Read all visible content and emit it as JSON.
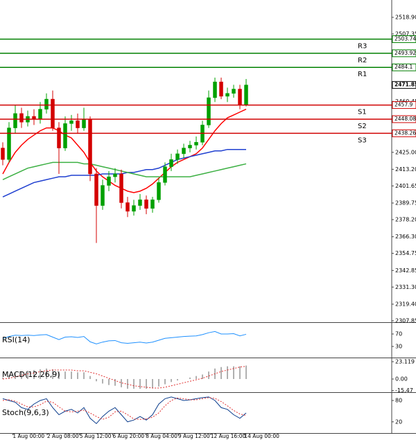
{
  "chart_data": [
    {
      "type": "candlestick",
      "up_color": "#00a000",
      "down_color": "#d40000",
      "open": [
        2428,
        2420,
        2442,
        2452,
        2446,
        2450,
        2448,
        2455,
        2462,
        2442,
        2428,
        2445,
        2447,
        2442,
        2448,
        2410,
        2388,
        2402,
        2408,
        2410,
        2390,
        2384,
        2388,
        2392,
        2386,
        2392,
        2404,
        2415,
        2420,
        2424,
        2428,
        2430,
        2432,
        2444,
        2463,
        2474,
        2464,
        2466,
        2469,
        2458
      ],
      "high": [
        2432,
        2446,
        2458,
        2456,
        2454,
        2455,
        2460,
        2466,
        2468,
        2446,
        2450,
        2451,
        2452,
        2456,
        2450,
        2414,
        2406,
        2412,
        2414,
        2413,
        2394,
        2392,
        2396,
        2395,
        2394,
        2407,
        2418,
        2424,
        2427,
        2431,
        2433,
        2436,
        2447,
        2468,
        2477,
        2477,
        2470,
        2472,
        2472,
        2476
      ],
      "low": [
        2416,
        2418,
        2438,
        2442,
        2443,
        2444,
        2445,
        2452,
        2440,
        2410,
        2426,
        2440,
        2438,
        2440,
        2405,
        2362,
        2385,
        2398,
        2404,
        2386,
        2380,
        2381,
        2385,
        2382,
        2383,
        2390,
        2402,
        2412,
        2417,
        2421,
        2425,
        2427,
        2430,
        2442,
        2460,
        2462,
        2460,
        2463,
        2455,
        2457
      ],
      "close": [
        2420,
        2442,
        2452,
        2446,
        2450,
        2448,
        2455,
        2462,
        2442,
        2428,
        2445,
        2447,
        2442,
        2448,
        2410,
        2388,
        2402,
        2408,
        2410,
        2390,
        2384,
        2388,
        2392,
        2386,
        2392,
        2404,
        2415,
        2420,
        2424,
        2428,
        2430,
        2432,
        2444,
        2463,
        2474,
        2464,
        2466,
        2469,
        2458,
        2471.85
      ],
      "overlays": [
        {
          "color": "#ff0000",
          "values": [
            2410,
            2418,
            2425,
            2430,
            2434,
            2437,
            2440,
            2442,
            2442,
            2440,
            2437,
            2435,
            2430,
            2425,
            2418,
            2412,
            2408,
            2405,
            2402,
            2400,
            2398,
            2397,
            2398,
            2400,
            2403,
            2407,
            2411,
            2415,
            2418,
            2420,
            2422,
            2424,
            2428,
            2434,
            2440,
            2445,
            2449,
            2451,
            2453,
            2455
          ]
        },
        {
          "color": "#1f3fd0",
          "values": [
            2394,
            2396,
            2398,
            2400,
            2402,
            2404,
            2405,
            2406,
            2407,
            2408,
            2408,
            2409,
            2409,
            2409,
            2409,
            2409,
            2410,
            2410,
            2410,
            2410,
            2411,
            2411,
            2412,
            2413,
            2413,
            2414,
            2416,
            2418,
            2420,
            2421,
            2422,
            2423,
            2424,
            2425,
            2426,
            2426,
            2427,
            2427,
            2427,
            2427
          ]
        },
        {
          "color": "#3cb043",
          "values": [
            2406,
            2408,
            2410,
            2412,
            2414,
            2415,
            2416,
            2417,
            2418,
            2418,
            2418,
            2418,
            2418,
            2417,
            2417,
            2416,
            2415,
            2414,
            2413,
            2412,
            2411,
            2410,
            2409,
            2408,
            2408,
            2408,
            2408,
            2408,
            2408,
            2408,
            2408,
            2409,
            2410,
            2411,
            2412,
            2413,
            2414,
            2415,
            2416,
            2417
          ]
        }
      ],
      "levels": [
        {
          "label": "R3",
          "value": 2503.74,
          "color": "#008000"
        },
        {
          "label": "R2",
          "value": 2493.92,
          "color": "#008000"
        },
        {
          "label": "R1",
          "value": 2484.1,
          "color": "#008000"
        },
        {
          "label": "S1",
          "value": 2457.9,
          "color": "#d00000"
        },
        {
          "label": "S2",
          "value": 2448.08,
          "color": "#d00000"
        },
        {
          "label": "S3",
          "value": 2438.26,
          "color": "#d00000"
        }
      ],
      "last": 2471.85,
      "ylim": [
        2306.85,
        2530.95
      ],
      "yticks": [
        {
          "value": 2518.9,
          "label": "2518.90"
        },
        2507.35,
        2460.45,
        {
          "value": 2425,
          "label": "2425.00"
        },
        {
          "value": 2413.2,
          "label": "2413.20"
        },
        2401.65,
        2389.75,
        {
          "value": 2378.2,
          "label": "2378.20"
        },
        {
          "value": 2366.3,
          "label": "2366.30"
        },
        2354.75,
        2342.85,
        {
          "value": 2331.3,
          "label": "2331.30"
        },
        {
          "value": 2319.4,
          "label": "2319.40"
        },
        2307.85
      ],
      "xticks": [
        {
          "value": 1.6,
          "label": "1 Aug 00:00"
        },
        {
          "value": 7.1,
          "label": "2 Aug 08:00"
        },
        {
          "value": 12.3,
          "label": "5 Aug 12:00"
        },
        {
          "value": 17.6,
          "label": "6 Aug 20:00"
        },
        {
          "value": 22.9,
          "label": "8 Aug 04:00"
        },
        {
          "value": 28.1,
          "label": "9 Aug 12:00"
        },
        {
          "value": 33.3,
          "label": "12 Aug 16:00"
        },
        {
          "value": 38.7,
          "label": "14 Aug 00:00"
        }
      ]
    },
    {
      "type": "line",
      "title": "RSI(14)",
      "series": [
        {
          "color": "#1e90ff",
          "style": "solid",
          "values": [
            55,
            62,
            66,
            65,
            66,
            65,
            67,
            68,
            60,
            52,
            60,
            61,
            59,
            62,
            45,
            38,
            44,
            48,
            49,
            42,
            40,
            42,
            44,
            41,
            44,
            50,
            56,
            58,
            60,
            62,
            63,
            64,
            68,
            74,
            78,
            70,
            70,
            71,
            64,
            69
          ]
        }
      ],
      "ylim": [
        -3.3,
        103.3
      ],
      "yticks": [
        70,
        30
      ]
    },
    {
      "type": "line",
      "title": "MACD(12,26,9)",
      "series": [
        {
          "color": "#b0b0b0",
          "style": "bar",
          "values": [
            2,
            5,
            8,
            10,
            11,
            12,
            13,
            14,
            13,
            10,
            10,
            10,
            9,
            9,
            4,
            -3,
            -6,
            -8,
            -9,
            -11,
            -13,
            -13,
            -13,
            -13,
            -12,
            -10,
            -7,
            -4,
            -2,
            0,
            2,
            4,
            6,
            10,
            14,
            16,
            17,
            17,
            17,
            18
          ]
        },
        {
          "color": "#e03030",
          "style": "dotted",
          "values": [
            0,
            1,
            3,
            5,
            7,
            8,
            10,
            11,
            12,
            12,
            12,
            12,
            11,
            11,
            9,
            7,
            4,
            1,
            -2,
            -5,
            -7,
            -9,
            -10,
            -11,
            -12,
            -12,
            -11,
            -9,
            -7,
            -5,
            -3,
            -1,
            1,
            4,
            7,
            10,
            12,
            14,
            16,
            17
          ]
        }
      ],
      "ylim": [
        -16.65,
        27.75
      ],
      "yticks": [
        23.119,
        {
          "value": 0,
          "label": "0.00"
        },
        -15.47
      ]
    },
    {
      "type": "line",
      "title": "Stoch(9,6,3)",
      "series": [
        {
          "color": "#0a3c8c",
          "style": "solid",
          "values": [
            85,
            80,
            75,
            60,
            55,
            70,
            80,
            85,
            60,
            40,
            50,
            55,
            45,
            60,
            30,
            15,
            35,
            50,
            60,
            40,
            20,
            25,
            35,
            25,
            40,
            70,
            85,
            90,
            85,
            80,
            82,
            85,
            88,
            90,
            80,
            60,
            55,
            40,
            30,
            45
          ]
        },
        {
          "color": "#e03030",
          "style": "dotted",
          "values": [
            80,
            82,
            78,
            70,
            62,
            62,
            68,
            78,
            75,
            62,
            50,
            48,
            50,
            53,
            45,
            35,
            27,
            33,
            48,
            50,
            40,
            28,
            27,
            28,
            33,
            45,
            65,
            80,
            87,
            85,
            82,
            82,
            85,
            88,
            86,
            77,
            65,
            52,
            42,
            38
          ]
        }
      ],
      "ylim": [
        -11.6,
        101.4
      ],
      "yticks": [
        80,
        20
      ]
    }
  ]
}
